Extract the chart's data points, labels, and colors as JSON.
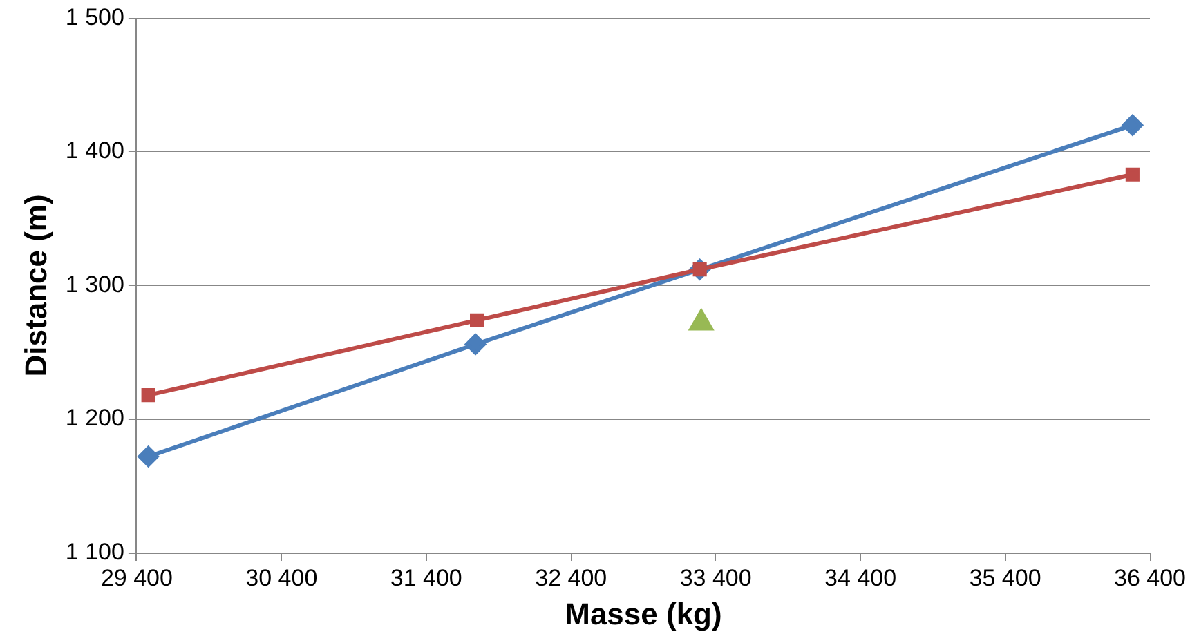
{
  "chart_data": {
    "type": "line",
    "xlabel": "Masse (kg)",
    "ylabel": "Distance (m)",
    "xlim": [
      29400,
      36400
    ],
    "xticks": [
      {
        "value": 29400,
        "label": "29 400"
      },
      {
        "value": 30400,
        "label": "30 400"
      },
      {
        "value": 31400,
        "label": "31 400"
      },
      {
        "value": 32400,
        "label": "32 400"
      },
      {
        "value": 33400,
        "label": "33 400"
      },
      {
        "value": 34400,
        "label": "34 400"
      },
      {
        "value": 35400,
        "label": "35 400"
      },
      {
        "value": 36400,
        "label": "36 400"
      }
    ],
    "ylim": [
      1100,
      1500
    ],
    "yticks": [
      {
        "value": 1100,
        "label": "1 100"
      },
      {
        "value": 1200,
        "label": "1 200"
      },
      {
        "value": 1300,
        "label": "1 300"
      },
      {
        "value": 1400,
        "label": "1 400"
      },
      {
        "value": 1500,
        "label": "1 500"
      }
    ],
    "grid": "y",
    "legend": false,
    "series": [
      {
        "type": "line",
        "marker": "diamond",
        "color": "#4a7ebb",
        "x": [
          29480,
          31740,
          33290,
          36280
        ],
        "values": [
          1172,
          1256,
          1312,
          1420
        ]
      },
      {
        "type": "line",
        "marker": "square",
        "color": "#be4b48",
        "x": [
          29480,
          31750,
          33290,
          36280
        ],
        "values": [
          1218,
          1274,
          1312,
          1383
        ]
      },
      {
        "type": "scatter",
        "marker": "triangle",
        "color": "#98b954",
        "x": [
          33300
        ],
        "values": [
          1272
        ]
      }
    ]
  }
}
